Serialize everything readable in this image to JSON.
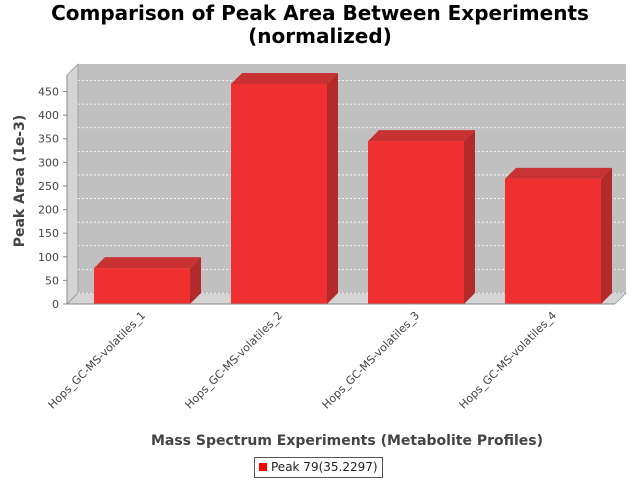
{
  "chart_data": {
    "type": "bar",
    "title_lines": [
      "Comparison of Peak Area Between Experiments",
      "(normalized)"
    ],
    "xlabel": "Mass Spectrum Experiments (Metabolite Profiles)",
    "ylabel": "Peak Area (1e-3)",
    "categories": [
      "Hops_GC-MS-volatiles_1",
      "Hops_GC-MS-volatiles_2",
      "Hops_GC-MS-volatiles_3",
      "Hops_GC-MS-volatiles_4"
    ],
    "series": [
      {
        "name": "Peak 79(35.2297)",
        "values": [
          76,
          466,
          345,
          265
        ],
        "color": "#ff0000"
      }
    ],
    "yticks": [
      0,
      50,
      100,
      150,
      200,
      250,
      300,
      350,
      400,
      450
    ],
    "ylim": [
      0,
      485
    ],
    "grid": true,
    "legend_position": "bottom-center",
    "plot_background": "#c0c0c0"
  }
}
